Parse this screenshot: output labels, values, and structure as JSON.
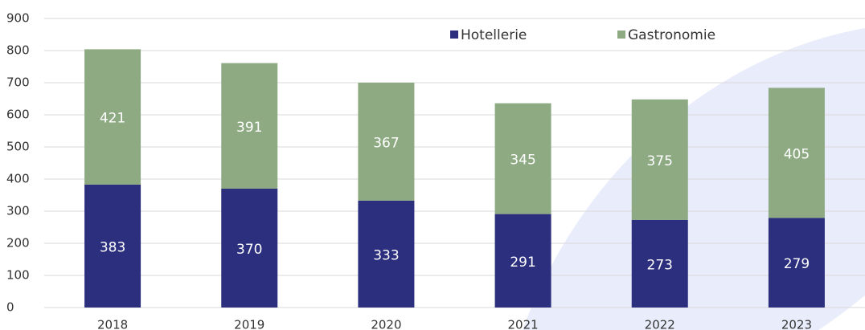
{
  "chart_data": {
    "type": "stacked_bar",
    "categories": [
      "2018",
      "2019",
      "2020",
      "2021",
      "2022",
      "2023"
    ],
    "series": [
      {
        "name": "Hotellerie",
        "color": "#2b2f7e",
        "values": [
          383,
          370,
          333,
          291,
          273,
          279
        ]
      },
      {
        "name": "Gastronomie",
        "color": "#8daa82",
        "values": [
          421,
          391,
          367,
          345,
          375,
          405
        ]
      }
    ],
    "ylim": [
      0,
      900
    ],
    "yticks": [
      0,
      100,
      200,
      300,
      400,
      500,
      600,
      700,
      800,
      900
    ],
    "grid": true
  }
}
